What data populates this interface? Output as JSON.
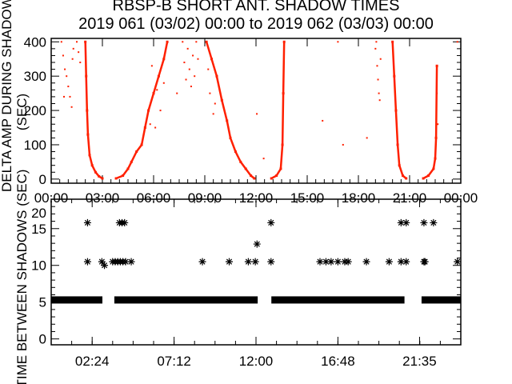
{
  "chart_data": [
    {
      "type": "scatter",
      "title": "RBSP-B SHORT ANT. SHADOW TIMES",
      "subtitle": "2019 061 (03/02) 00:00 to 2019 062 (03/03) 00:00",
      "ylabel": "DELTA AMP DURING SHADOWS",
      "ylabel_units": "(SEC)",
      "xlim": [
        0,
        24
      ],
      "ylim": [
        -12,
        410
      ],
      "xticks": [
        0,
        3,
        6,
        9,
        12,
        15,
        18,
        21,
        24
      ],
      "xtick_labels": [
        "00:00",
        "03:00",
        "06:00",
        "09:00",
        "12:00",
        "15:00",
        "18:00",
        "21:00",
        "00:00"
      ],
      "yticks": [
        0,
        100,
        200,
        300,
        400
      ],
      "ytick_labels": [
        "0",
        "100",
        "200",
        "300",
        "400"
      ],
      "color": "#ff2000",
      "curves": [
        [
          [
            2.0,
            400
          ],
          [
            2.05,
            300
          ],
          [
            2.1,
            200
          ],
          [
            2.15,
            130
          ],
          [
            2.25,
            70
          ],
          [
            2.4,
            40
          ],
          [
            2.6,
            20
          ],
          [
            2.8,
            8
          ],
          [
            3.0,
            2
          ]
        ],
        [
          [
            3.8,
            2
          ],
          [
            4.2,
            10
          ],
          [
            4.5,
            30
          ],
          [
            4.7,
            50
          ],
          [
            5.0,
            80
          ],
          [
            5.3,
            100
          ],
          [
            5.5,
            150
          ],
          [
            5.7,
            200
          ],
          [
            6.0,
            250
          ],
          [
            6.3,
            300
          ],
          [
            6.6,
            350
          ],
          [
            6.8,
            400
          ]
        ],
        [
          [
            9.1,
            400
          ],
          [
            9.4,
            350
          ],
          [
            9.7,
            300
          ],
          [
            10.0,
            230
          ],
          [
            10.3,
            170
          ],
          [
            10.5,
            120
          ],
          [
            10.8,
            80
          ],
          [
            11.1,
            50
          ],
          [
            11.4,
            30
          ],
          [
            11.7,
            10
          ],
          [
            11.9,
            2
          ]
        ],
        [
          [
            12.9,
            2
          ],
          [
            13.2,
            10
          ],
          [
            13.45,
            30
          ],
          [
            13.55,
            100
          ],
          [
            13.6,
            250
          ],
          [
            13.65,
            400
          ]
        ],
        [
          [
            20.0,
            400
          ],
          [
            20.1,
            300
          ],
          [
            20.2,
            200
          ],
          [
            20.3,
            100
          ],
          [
            20.4,
            40
          ],
          [
            20.6,
            10
          ],
          [
            20.8,
            2
          ]
        ],
        [
          [
            21.8,
            2
          ],
          [
            22.1,
            10
          ],
          [
            22.4,
            30
          ],
          [
            22.5,
            60
          ],
          [
            22.55,
            120
          ],
          [
            22.6,
            330
          ]
        ]
      ],
      "points": [
        [
          0.6,
          400
        ],
        [
          0.7,
          360
        ],
        [
          0.8,
          320
        ],
        [
          0.9,
          300
        ],
        [
          1.0,
          270
        ],
        [
          1.1,
          240
        ],
        [
          1.2,
          210
        ],
        [
          1.3,
          380
        ],
        [
          0.75,
          240
        ],
        [
          1.25,
          350
        ],
        [
          1.5,
          400
        ],
        [
          1.6,
          370
        ],
        [
          1.7,
          340
        ],
        [
          7.7,
          400
        ],
        [
          7.8,
          340
        ],
        [
          7.9,
          290
        ],
        [
          8.0,
          380
        ],
        [
          8.1,
          320
        ],
        [
          8.2,
          270
        ],
        [
          8.3,
          360
        ],
        [
          8.4,
          300
        ],
        [
          8.5,
          400
        ],
        [
          8.6,
          350
        ],
        [
          5.8,
          160
        ],
        [
          6.1,
          150
        ],
        [
          6.4,
          200
        ],
        [
          6.6,
          280
        ],
        [
          5.9,
          330
        ],
        [
          6.2,
          260
        ],
        [
          9.3,
          250
        ],
        [
          9.5,
          190
        ],
        [
          9.6,
          220
        ],
        [
          9.2,
          320
        ],
        [
          7.37,
          250
        ],
        [
          12.05,
          190
        ],
        [
          12.45,
          60
        ],
        [
          15.9,
          170
        ],
        [
          16.8,
          400
        ],
        [
          17.1,
          100
        ],
        [
          18.5,
          120
        ],
        [
          23.8,
          400
        ],
        [
          19.0,
          380
        ],
        [
          19.1,
          330
        ],
        [
          19.15,
          290
        ],
        [
          19.2,
          250
        ],
        [
          19.25,
          230
        ],
        [
          19.3,
          350
        ],
        [
          19.05,
          400
        ],
        [
          22.6,
          250
        ],
        [
          22.65,
          160
        ]
      ]
    },
    {
      "type": "scatter",
      "ylabel": "TIME BETWEEN SHADOWS (SEC)",
      "xlim": [
        0,
        24
      ],
      "ylim": [
        -0.8,
        19
      ],
      "xticks": [
        2.4,
        7.2,
        12.0,
        16.8,
        21.583
      ],
      "xtick_labels": [
        "02:24",
        "07:12",
        "12:00",
        "16:48",
        "21:35"
      ],
      "yticks": [
        0,
        5,
        10,
        15,
        20
      ],
      "ytick_labels": [
        "0",
        "5",
        "10",
        "15",
        "20"
      ],
      "color": "#000000",
      "marker": "asterisk",
      "band_value": 5.3,
      "band_segments": [
        [
          0,
          3.0
        ],
        [
          3.7,
          12.1
        ],
        [
          12.9,
          20.7
        ],
        [
          21.7,
          24
        ]
      ],
      "points": [
        [
          2.13,
          15.8
        ],
        [
          2.13,
          10.5
        ],
        [
          2.97,
          10.5
        ],
        [
          3.12,
          10.0
        ],
        [
          3.6,
          10.5
        ],
        [
          3.75,
          10.5
        ],
        [
          3.9,
          10.5
        ],
        [
          4.05,
          10.5
        ],
        [
          4.2,
          10.5
        ],
        [
          4.36,
          10.5
        ],
        [
          4.0,
          15.8
        ],
        [
          4.15,
          15.8
        ],
        [
          4.3,
          15.8
        ],
        [
          4.69,
          10.5
        ],
        [
          8.86,
          10.5
        ],
        [
          10.43,
          10.5
        ],
        [
          11.55,
          10.5
        ],
        [
          11.96,
          10.5
        ],
        [
          12.06,
          12.9
        ],
        [
          12.88,
          15.8
        ],
        [
          12.88,
          10.5
        ],
        [
          15.75,
          10.5
        ],
        [
          16.1,
          10.5
        ],
        [
          16.4,
          10.5
        ],
        [
          16.8,
          10.5
        ],
        [
          17.2,
          10.5
        ],
        [
          17.4,
          10.5
        ],
        [
          18.47,
          10.5
        ],
        [
          19.8,
          10.5
        ],
        [
          20.5,
          15.8
        ],
        [
          20.8,
          15.8
        ],
        [
          20.5,
          10.5
        ],
        [
          20.8,
          10.5
        ],
        [
          21.84,
          15.8
        ],
        [
          21.84,
          10.5
        ],
        [
          21.9,
          10.5
        ],
        [
          22.4,
          15.8
        ],
        [
          23.8,
          10.5
        ]
      ]
    }
  ]
}
